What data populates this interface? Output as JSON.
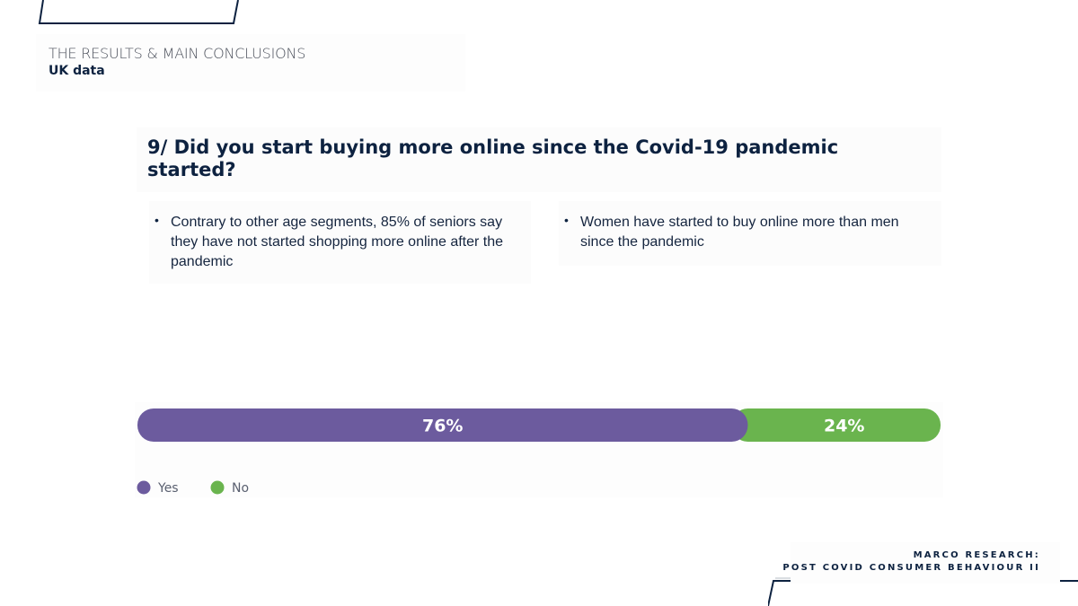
{
  "header": {
    "section": "THE RESULTS & MAIN CONCLUSIONS",
    "subtitle": "UK data"
  },
  "question": "9/ Did you start buying more online since the Covid-19 pandemic started?",
  "notes": [
    "Contrary to other age segments, 85% of seniors say they have not started shopping more online after the pandemic",
    "Women have started to buy online more than men since the pandemic"
  ],
  "colors": {
    "yes": "#6c5b9e",
    "no": "#6ab44e",
    "navy": "#0d2240"
  },
  "chart_data": {
    "type": "bar",
    "orientation": "horizontal-stacked-100",
    "categories": [
      ""
    ],
    "series": [
      {
        "name": "Yes",
        "values": [
          76
        ],
        "label": "76%"
      },
      {
        "name": "No",
        "values": [
          24
        ],
        "label": "24%"
      }
    ],
    "xlim": [
      0,
      100
    ],
    "grid": false,
    "legend": "bottom-left"
  },
  "footer": {
    "line1": "MARCO RESEARCH:",
    "line2": "POST COVID CONSUMER BEHAVIOUR II"
  }
}
